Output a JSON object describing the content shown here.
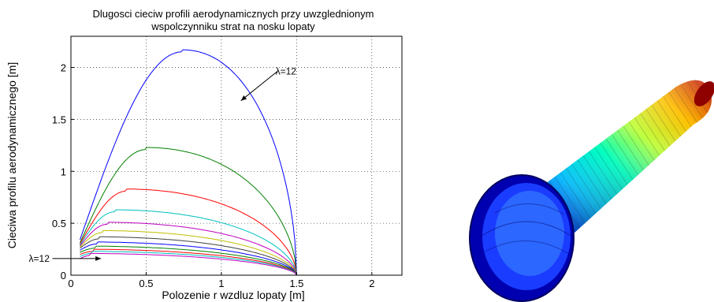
{
  "chart_data": {
    "type": "line",
    "title": [
      "Dlugosci cieciw profili aerodynamicznych przy uwzglednionym",
      "wspolczynniku strat na nosku lopaty"
    ],
    "xlabel": "Polozenie r wzdluz lopaty [m]",
    "ylabel": "Cieciwa profilu aerodynamicznego [m]",
    "xlim": [
      0,
      2.2
    ],
    "ylim": [
      0,
      2.3
    ],
    "xticks": [
      "0",
      "0.5",
      "1",
      "1.5",
      "2"
    ],
    "yticks": [
      "0",
      "0.5",
      "1",
      "1.5",
      "2"
    ],
    "xtick_values": [
      0,
      0.5,
      1,
      1.5,
      2
    ],
    "ytick_values": [
      0,
      0.5,
      1,
      1.5,
      2
    ],
    "grid": "dotted",
    "x_range_of_curves": [
      0.06,
      1.5
    ],
    "series": [
      {
        "color": "#0000ff",
        "peak_x": 0.74,
        "peak_y": 2.15,
        "start_y": 0.34
      },
      {
        "color": "#008000",
        "peak_x": 0.5,
        "peak_y": 1.21,
        "start_y": 0.31
      },
      {
        "color": "#ff0000",
        "peak_x": 0.37,
        "peak_y": 0.81,
        "start_y": 0.3
      },
      {
        "color": "#00bfbf",
        "peak_x": 0.29,
        "peak_y": 0.61,
        "start_y": 0.29
      },
      {
        "color": "#bf00bf",
        "peak_x": 0.24,
        "peak_y": 0.49,
        "start_y": 0.28
      },
      {
        "color": "#bfbf00",
        "peak_x": 0.21,
        "peak_y": 0.41,
        "start_y": 0.27
      },
      {
        "color": "#404040",
        "peak_x": 0.19,
        "peak_y": 0.35,
        "start_y": 0.26
      },
      {
        "color": "#0000ff",
        "peak_x": 0.17,
        "peak_y": 0.3,
        "start_y": 0.24
      },
      {
        "color": "#008000",
        "peak_x": 0.16,
        "peak_y": 0.26,
        "start_y": 0.22
      },
      {
        "color": "#ff0000",
        "peak_x": 0.15,
        "peak_y": 0.23,
        "start_y": 0.2
      },
      {
        "color": "#00bfbf",
        "peak_x": 0.14,
        "peak_y": 0.21,
        "start_y": 0.18
      },
      {
        "color": "#bf00bf",
        "peak_x": 0.13,
        "peak_y": 0.19,
        "start_y": 0.16
      }
    ],
    "annotations": [
      {
        "text": "λ=12",
        "x": 1.36,
        "y": 1.93,
        "arrow_to": [
          1.13,
          1.68
        ]
      },
      {
        "text": "λ=12",
        "x": -0.28,
        "y": 0.13,
        "arrow_to": [
          0.2,
          0.16
        ]
      }
    ]
  },
  "render_3d": {
    "description_colors": [
      "#00008f",
      "#0000ff",
      "#00bfff",
      "#00ffbf",
      "#bfff40",
      "#ffbf00",
      "#ff4000",
      "#8f0000"
    ]
  }
}
